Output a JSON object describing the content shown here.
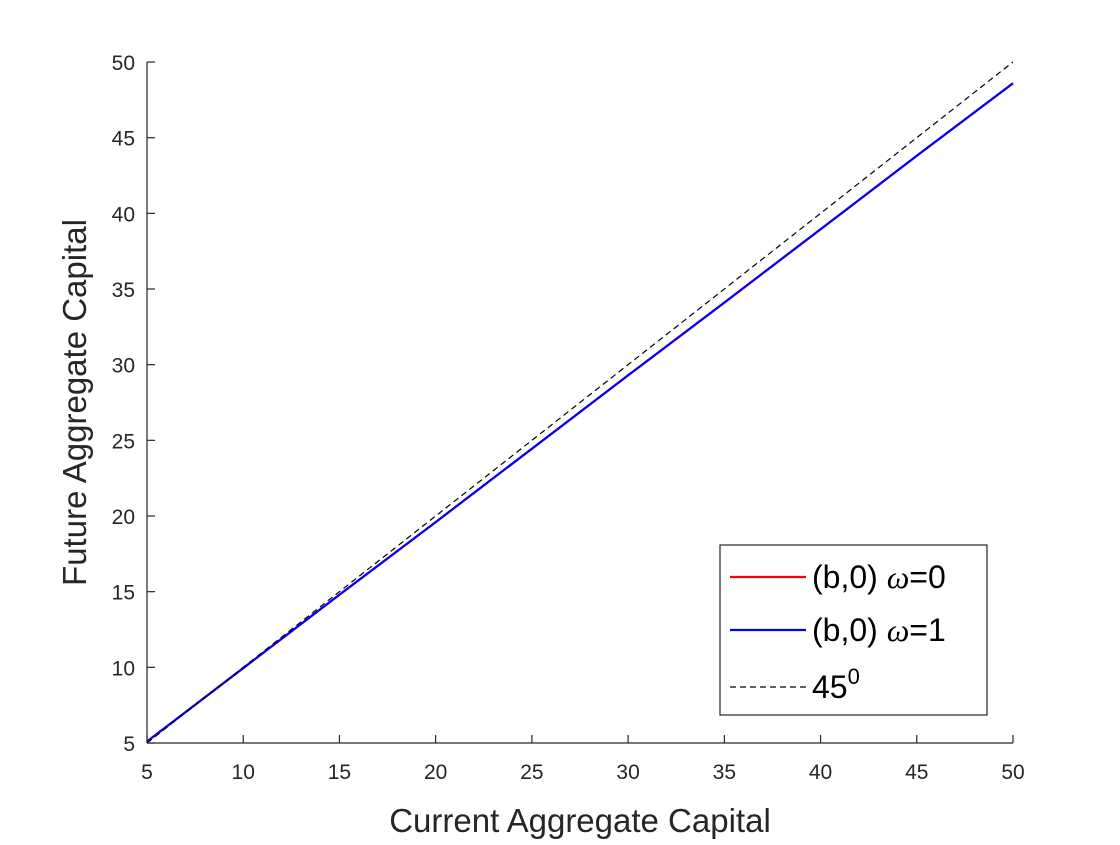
{
  "chart_data": {
    "type": "line",
    "title": "",
    "xlabel": "Current Aggregate Capital",
    "ylabel": "Future Aggregate Capital",
    "xlim": [
      5,
      50
    ],
    "ylim": [
      5,
      50
    ],
    "xticks": [
      5,
      10,
      15,
      20,
      25,
      30,
      35,
      40,
      45,
      50
    ],
    "yticks": [
      5,
      10,
      15,
      20,
      25,
      30,
      35,
      40,
      45,
      50
    ],
    "grid": false,
    "legend_position": "bottom-right",
    "series": [
      {
        "name": "(b,0) ω=0",
        "legend_prefix": "(b,0) ",
        "legend_symbol": "ω",
        "legend_suffix": "=0",
        "color": "#ff0000",
        "style": "solid",
        "x": [
          5,
          10,
          15,
          20,
          25,
          30,
          35,
          40,
          45,
          50
        ],
        "values": [
          5.1,
          9.95,
          14.8,
          19.6,
          24.45,
          29.3,
          34.1,
          38.95,
          43.8,
          48.6
        ]
      },
      {
        "name": "(b,0) ω=1",
        "legend_prefix": "(b,0) ",
        "legend_symbol": "ω",
        "legend_suffix": "=1",
        "color": "#0000ff",
        "style": "solid",
        "x": [
          5,
          10,
          15,
          20,
          25,
          30,
          35,
          40,
          45,
          50
        ],
        "values": [
          5.1,
          9.95,
          14.8,
          19.6,
          24.45,
          29.3,
          34.1,
          38.95,
          43.8,
          48.6
        ]
      },
      {
        "name": "45^0",
        "legend_base": "45",
        "legend_sup": "0",
        "color": "#000000",
        "style": "dashed",
        "x": [
          5,
          50
        ],
        "values": [
          5,
          50
        ]
      }
    ]
  }
}
